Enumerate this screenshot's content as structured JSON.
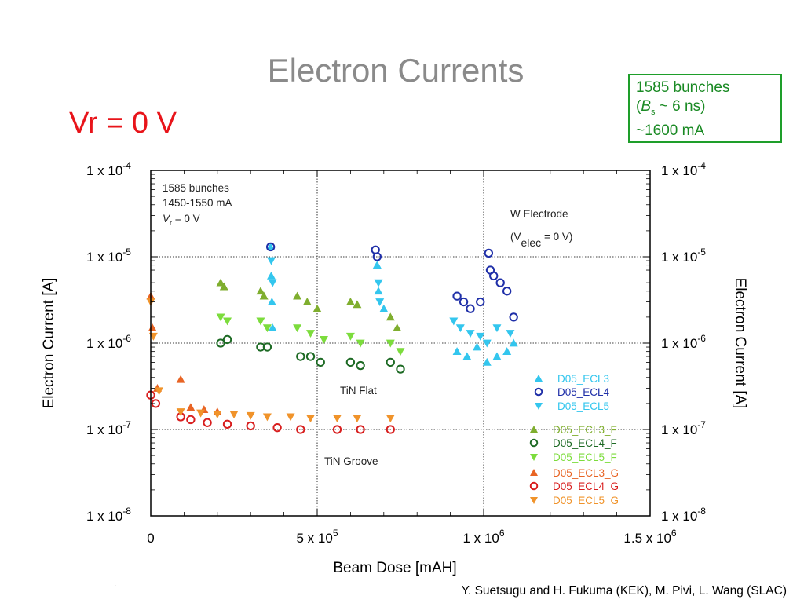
{
  "slide": {
    "title": "Electron Currents",
    "vr_label": "Vr = 0 V",
    "info_box": {
      "line1": "1585 bunches",
      "line2_open": "(",
      "line2_b": "B",
      "line2_sub": "s",
      "line2_rest": " ~ 6 ns)",
      "line3": "~1600 mA"
    },
    "footer": "Y. Suetsugu and H. Fukuma (KEK), M. Pivi, L. Wang (SLAC)"
  },
  "chart_data": {
    "type": "scatter",
    "xlabel": "Beam Dose [mAH]",
    "ylabel": "Electron Current [A]",
    "ylabel_right": "Electron Current [A]",
    "xlim": [
      0,
      1500000
    ],
    "ylim": [
      1e-08,
      0.0001
    ],
    "y_scale": "log",
    "grid": true,
    "x_ticks": [
      {
        "value": 0,
        "label": "0"
      },
      {
        "value": 500000,
        "base": "5 x 10",
        "exp": "5"
      },
      {
        "value": 1000000,
        "base": "1 x 10",
        "exp": "6"
      },
      {
        "value": 1500000,
        "base": "1.5 x 10",
        "exp": "6"
      }
    ],
    "y_ticks": [
      {
        "value": 0.0001,
        "base": "1 x 10",
        "exp": "-4"
      },
      {
        "value": 1e-05,
        "base": "1 x 10",
        "exp": "-5"
      },
      {
        "value": 1e-06,
        "base": "1 x 10",
        "exp": "-6"
      },
      {
        "value": 1e-07,
        "base": "1 x 10",
        "exp": "-7"
      },
      {
        "value": 1e-08,
        "base": "1 x 10",
        "exp": "-8"
      }
    ],
    "note": {
      "line1": "1585 bunches",
      "line2": "1450-1550 mA",
      "line3_v": "V",
      "line3_sub": "r",
      "line3_rest": " = 0 V"
    },
    "annotations": {
      "w_electrode_1": "W Electrode",
      "w_electrode_2_open": "(V",
      "w_electrode_2_sub": "elec",
      "w_electrode_2_rest": " = 0 V)",
      "tin_flat": "TiN Flat",
      "tin_groove": "TiN Groove"
    },
    "colors": {
      "w_label": "#1f3aa8",
      "tin_flat": "#1d7a1d",
      "tin_groove": "#d9541a"
    },
    "legend_position": "bottom-right",
    "series": [
      {
        "name": "D05_ECL3",
        "color": "#33c6ee",
        "marker": "triangle-up",
        "x": [
          360000,
          362000,
          364000,
          366000,
          680000,
          684000,
          700000,
          920000,
          950000,
          980000,
          1010000,
          1040000,
          1070000,
          1090000
        ],
        "y": [
          1.3e-05,
          6e-06,
          3e-06,
          1.5e-06,
          8e-06,
          4e-06,
          2.5e-06,
          8e-07,
          7e-07,
          9e-07,
          6e-07,
          7e-07,
          8e-07,
          1e-06
        ]
      },
      {
        "name": "D05_ECL4",
        "color": "#1f2fa8",
        "marker": "circle-open",
        "x": [
          360000,
          675000,
          680000,
          920000,
          940000,
          960000,
          990000,
          1015000,
          1020000,
          1030000,
          1050000,
          1070000,
          1090000
        ],
        "y": [
          1.3e-05,
          1.2e-05,
          1e-05,
          3.5e-06,
          3e-06,
          2.5e-06,
          3e-06,
          1.1e-05,
          7e-06,
          6e-06,
          5e-06,
          4e-06,
          2e-06
        ]
      },
      {
        "name": "D05_ECL5",
        "color": "#33c6ee",
        "marker": "triangle-down",
        "x": [
          362000,
          366000,
          684000,
          688000,
          910000,
          930000,
          960000,
          990000,
          1010000,
          1040000,
          1080000
        ],
        "y": [
          9e-06,
          5e-06,
          5e-06,
          3e-06,
          1.8e-06,
          1.5e-06,
          1.3e-06,
          1.2e-06,
          1e-06,
          1.5e-06,
          1.3e-06
        ]
      },
      {
        "name": "D05_ECL3_F",
        "color": "#7fae2e",
        "marker": "triangle-up",
        "x": [
          210000,
          220000,
          330000,
          340000,
          440000,
          470000,
          500000,
          600000,
          620000,
          720000,
          740000
        ],
        "y": [
          5e-06,
          4.5e-06,
          4e-06,
          3.5e-06,
          3.5e-06,
          3e-06,
          2.5e-06,
          3e-06,
          2.8e-06,
          2e-06,
          1.5e-06
        ]
      },
      {
        "name": "D05_ECL4_F",
        "color": "#1d6a24",
        "marker": "circle-open",
        "x": [
          210000,
          230000,
          330000,
          350000,
          450000,
          480000,
          510000,
          600000,
          630000,
          720000,
          750000
        ],
        "y": [
          1e-06,
          1.1e-06,
          9e-07,
          9e-07,
          7e-07,
          7e-07,
          6e-07,
          6e-07,
          5.5e-07,
          6e-07,
          5e-07
        ]
      },
      {
        "name": "D05_ECL5_F",
        "color": "#7cdc3c",
        "marker": "triangle-down",
        "x": [
          210000,
          230000,
          330000,
          350000,
          440000,
          480000,
          520000,
          600000,
          630000,
          720000,
          750000
        ],
        "y": [
          2e-06,
          1.8e-06,
          1.8e-06,
          1.5e-06,
          1.5e-06,
          1.3e-06,
          1.1e-06,
          1.2e-06,
          1e-06,
          1e-06,
          8e-07
        ]
      },
      {
        "name": "D05_ECL3_G",
        "color": "#e86424",
        "marker": "triangle-up",
        "x": [
          0,
          5000,
          20000,
          90000,
          120000,
          160000,
          200000
        ],
        "y": [
          3.5e-06,
          1.5e-06,
          3e-07,
          3.8e-07,
          1.8e-07,
          1.7e-07,
          1.6e-07
        ]
      },
      {
        "name": "D05_ECL4_G",
        "color": "#d81e1e",
        "marker": "circle-open",
        "x": [
          0,
          15000,
          90000,
          120000,
          170000,
          230000,
          300000,
          380000,
          450000,
          560000,
          630000,
          720000
        ],
        "y": [
          2.5e-07,
          2e-07,
          1.4e-07,
          1.3e-07,
          1.2e-07,
          1.15e-07,
          1.1e-07,
          1.05e-07,
          1e-07,
          1e-07,
          1e-07,
          1e-07
        ]
      },
      {
        "name": "D05_ECL5_G",
        "color": "#f0932a",
        "marker": "triangle-down",
        "x": [
          0,
          8000,
          25000,
          90000,
          150000,
          200000,
          250000,
          300000,
          350000,
          420000,
          480000,
          560000,
          620000,
          720000
        ],
        "y": [
          3e-06,
          1.2e-06,
          2.8e-07,
          1.6e-07,
          1.55e-07,
          1.5e-07,
          1.5e-07,
          1.45e-07,
          1.4e-07,
          1.4e-07,
          1.35e-07,
          1.35e-07,
          1.35e-07,
          1.35e-07
        ]
      }
    ]
  }
}
